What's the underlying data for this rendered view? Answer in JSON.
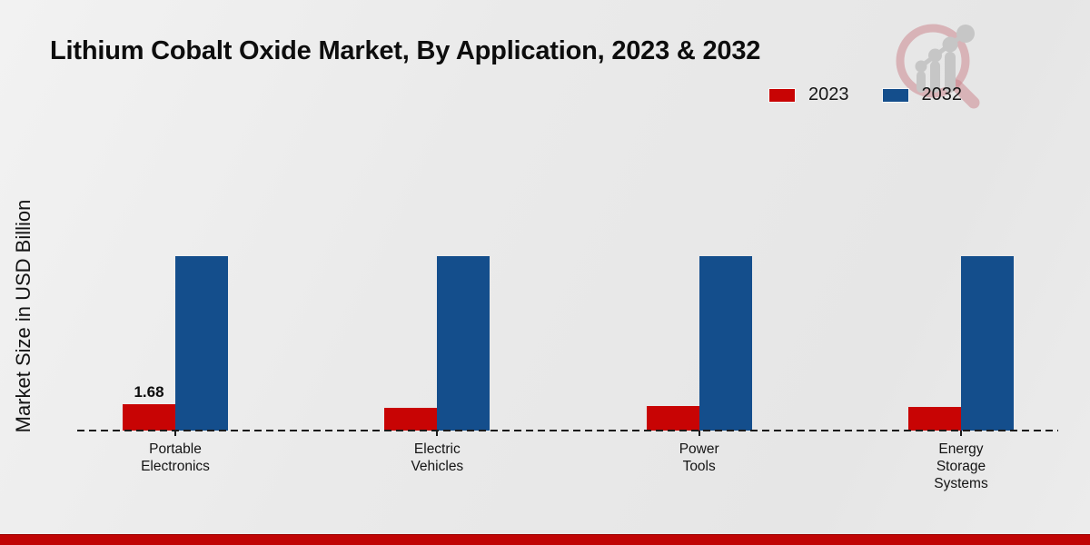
{
  "page": {
    "footer_color": "#c00404",
    "background_color": "#eaeaea"
  },
  "chart_data": {
    "type": "bar",
    "title": "Lithium Cobalt Oxide Market, By Application, 2023 & 2032",
    "ylabel": "Market Size in USD Billion",
    "xlabel": "",
    "categories": [
      "Portable Electronics",
      "Electric Vehicles",
      "Power Tools",
      "Energy Storage Systems"
    ],
    "series": [
      {
        "name": "2023",
        "color": "#c80404",
        "values": [
          1.68,
          1.45,
          1.55,
          1.5
        ]
      },
      {
        "name": "2032",
        "color": "#144e8c",
        "values": [
          11.1,
          11.1,
          11.1,
          11.1
        ]
      }
    ],
    "value_labels": [
      {
        "series_index": 0,
        "category_index": 0,
        "text": "1.68"
      }
    ],
    "ylim": [
      0,
      13
    ],
    "grid": false,
    "legend_position": "top-right",
    "baseline_style": "dashed",
    "notes": "Only the first 2023 bar carries a printed data label; other values are estimated from bar heights."
  },
  "logo": {
    "name": "market-research-watermark",
    "ring_color": "rgba(202,128,136,0.5)",
    "bars_color": "#c6c6c6"
  }
}
